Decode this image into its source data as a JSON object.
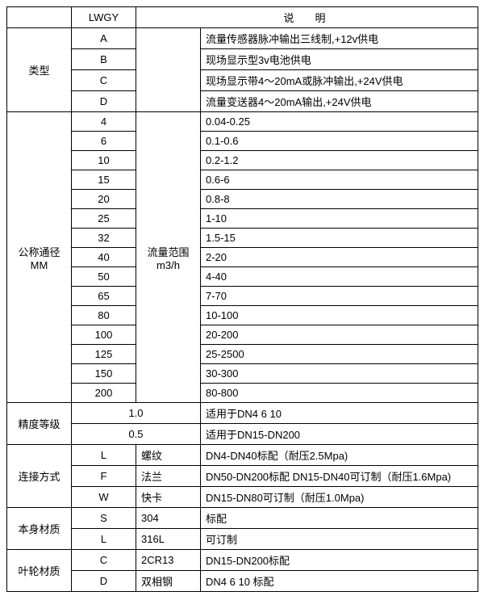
{
  "header": {
    "lwgy": "LWGY",
    "desc": "说明"
  },
  "type_section": {
    "label": "类型",
    "rows": [
      {
        "code": "A",
        "desc": "流量传感器脉冲输出三线制,+12v供电"
      },
      {
        "code": "B",
        "desc": "现场显示型3v电池供电"
      },
      {
        "code": "C",
        "desc": "现场显示带4～20mA或脉冲输出,+24V供电"
      },
      {
        "code": "D",
        "desc": "流量变送器4～20mA输出,+24V供电"
      }
    ]
  },
  "dn_section": {
    "label_line1": "公称通径",
    "label_line2": "MM",
    "mid_line1": "流量范围",
    "mid_line2": "m3/h",
    "rows": [
      {
        "dn": "4",
        "range": "0.04-0.25"
      },
      {
        "dn": "6",
        "range": "0.1-0.6"
      },
      {
        "dn": "10",
        "range": "0.2-1.2"
      },
      {
        "dn": "15",
        "range": "0.6-6"
      },
      {
        "dn": "20",
        "range": "0.8-8"
      },
      {
        "dn": "25",
        "range": "1-10"
      },
      {
        "dn": "32",
        "range": "1.5-15"
      },
      {
        "dn": "40",
        "range": "2-20"
      },
      {
        "dn": "50",
        "range": "4-40"
      },
      {
        "dn": "65",
        "range": "7-70"
      },
      {
        "dn": "80",
        "range": "10-100"
      },
      {
        "dn": "100",
        "range": "20-200"
      },
      {
        "dn": "125",
        "range": "25-2500"
      },
      {
        "dn": "150",
        "range": "30-300"
      },
      {
        "dn": "200",
        "range": "80-800"
      }
    ]
  },
  "accuracy_section": {
    "label": "精度等级",
    "rows": [
      {
        "val": "1.0",
        "desc": "适用于DN4  6  10"
      },
      {
        "val": "0.5",
        "desc": "适用于DN15-DN200"
      }
    ]
  },
  "conn_section": {
    "label": "连接方式",
    "rows": [
      {
        "code": "L",
        "kind": "螺纹",
        "desc": "DN4-DN40标配（耐压2.5Mpa)"
      },
      {
        "code": "F",
        "kind": "法兰",
        "desc": "DN50-DN200标配 DN15-DN40可订制（耐压1.6Mpa)"
      },
      {
        "code": "W",
        "kind": "快卡",
        "desc": "DN15-DN80可订制（耐压1.0Mpa)"
      }
    ]
  },
  "body_section": {
    "label": "本身材质",
    "rows": [
      {
        "code": "S",
        "kind": "304",
        "desc": "标配"
      },
      {
        "code": "L",
        "kind": "316L",
        "desc": "可订制"
      }
    ]
  },
  "impeller_section": {
    "label": "叶轮材质",
    "rows": [
      {
        "code": "C",
        "kind": "2CR13",
        "desc": "DN15-DN200标配"
      },
      {
        "code": "D",
        "kind": "双相钢",
        "desc": "DN4 6 10 标配"
      }
    ]
  }
}
